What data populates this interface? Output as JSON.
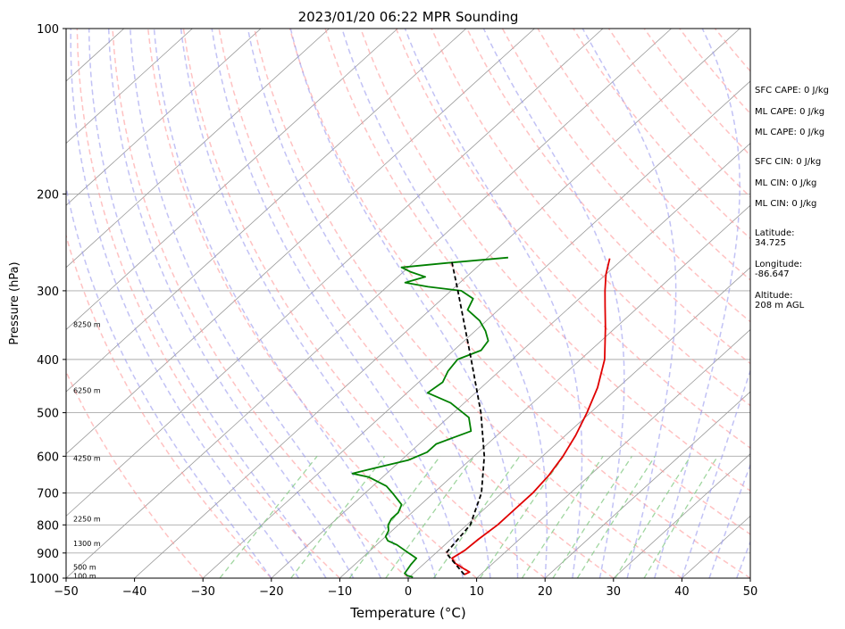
{
  "chart_data": {
    "type": "line",
    "title": "2023/01/20 06:22 MPR Sounding",
    "xlabel": "Temperature (°C)",
    "ylabel": "Pressure (hPa)",
    "xlim": [
      -50,
      50
    ],
    "ylim": [
      1000,
      100
    ],
    "y_scale": "log",
    "skew": true,
    "grid": true,
    "x_ticks": [
      "−50",
      "−40",
      "−30",
      "−20",
      "−10",
      "0",
      "10",
      "20",
      "30",
      "40",
      "50"
    ],
    "x_tick_values": [
      -50,
      -40,
      -30,
      -20,
      -10,
      0,
      10,
      20,
      30,
      40,
      50
    ],
    "y_ticks": [
      "100",
      "200",
      "300",
      "400",
      "500",
      "600",
      "700",
      "800",
      "900",
      "1000"
    ],
    "y_tick_values": [
      100,
      200,
      300,
      400,
      500,
      600,
      700,
      800,
      900,
      1000
    ],
    "series": [
      {
        "color": "#e00000",
        "points": [
          [
            985,
            7.6
          ],
          [
            975,
            8.0
          ],
          [
            960,
            6.5
          ],
          [
            940,
            4.5
          ],
          [
            920,
            3.2
          ],
          [
            890,
            3.8
          ],
          [
            850,
            4.0
          ],
          [
            800,
            4.5
          ],
          [
            750,
            4.5
          ],
          [
            700,
            4.5
          ],
          [
            650,
            4.0
          ],
          [
            600,
            3.0
          ],
          [
            550,
            1.5
          ],
          [
            500,
            -0.5
          ],
          [
            450,
            -3.0
          ],
          [
            400,
            -6.5
          ],
          [
            350,
            -11.5
          ],
          [
            320,
            -15.0
          ],
          [
            300,
            -17.5
          ],
          [
            280,
            -20.0
          ],
          [
            262,
            -22.0
          ]
        ]
      },
      {
        "color": "#008000",
        "points": [
          [
            995,
            0.5
          ],
          [
            990,
            -0.5
          ],
          [
            980,
            -1.3
          ],
          [
            965,
            -1.5
          ],
          [
            945,
            -1.8
          ],
          [
            920,
            -2.0
          ],
          [
            895,
            -4.5
          ],
          [
            870,
            -7.0
          ],
          [
            855,
            -9.0
          ],
          [
            840,
            -10.0
          ],
          [
            820,
            -10.5
          ],
          [
            800,
            -11.5
          ],
          [
            780,
            -12.0
          ],
          [
            760,
            -12.0
          ],
          [
            735,
            -12.8
          ],
          [
            700,
            -16.0
          ],
          [
            680,
            -18.0
          ],
          [
            655,
            -22.0
          ],
          [
            645,
            -25.0
          ],
          [
            630,
            -22.5
          ],
          [
            610,
            -19.0
          ],
          [
            590,
            -17.5
          ],
          [
            570,
            -17.5
          ],
          [
            540,
            -14.5
          ],
          [
            510,
            -17.0
          ],
          [
            480,
            -22.0
          ],
          [
            460,
            -27.0
          ],
          [
            440,
            -26.5
          ],
          [
            420,
            -27.5
          ],
          [
            400,
            -28.0
          ],
          [
            385,
            -26.0
          ],
          [
            370,
            -26.5
          ],
          [
            355,
            -28.5
          ],
          [
            340,
            -31.0
          ],
          [
            325,
            -34.5
          ],
          [
            310,
            -35.5
          ],
          [
            300,
            -38.5
          ],
          [
            295,
            -44.0
          ],
          [
            290,
            -48.0
          ],
          [
            283,
            -46.0
          ],
          [
            277,
            -49.0
          ],
          [
            272,
            -51.0
          ],
          [
            267,
            -45.0
          ],
          [
            261,
            -37.0
          ]
        ]
      },
      {
        "color": "#000000",
        "points": [
          [
            985,
            7.6
          ],
          [
            900,
            1.5
          ],
          [
            800,
            0.5
          ],
          [
            700,
            -3.0
          ],
          [
            600,
            -8.5
          ],
          [
            500,
            -16.0
          ],
          [
            400,
            -26.0
          ],
          [
            300,
            -39.0
          ],
          [
            263,
            -45.0
          ]
        ]
      }
    ],
    "height_labels": [
      "100 m",
      "500 m",
      "1300 m",
      "2250 m",
      "4250 m",
      "6250 m",
      "8250 m"
    ],
    "height_label_pressures": [
      990,
      955,
      865,
      780,
      605,
      455,
      345
    ]
  },
  "info_panel": {
    "lines": [
      "SFC CAPE: 0 J/kg",
      "ML CAPE: 0 J/kg",
      "ML CAPE: 0 J/kg",
      "SFC CIN: 0 J/kg",
      "ML CIN: 0 J/kg",
      "ML CIN: 0 J/kg"
    ],
    "latitude_label": "Latitude:",
    "latitude_value": "34.725",
    "longitude_label": "Longitude:",
    "longitude_value": "-86.647",
    "altitude_label": "Altitude:",
    "altitude_value": "208 m AGL"
  },
  "colors": {
    "dry_adiabat": "#ff9999",
    "moist_adiabat": "#9999ee",
    "mixing_ratio": "#88cc88",
    "isotherm": "#999999",
    "isobar": "#aaaaaa",
    "temperature": "#e00000",
    "dewpoint": "#008000",
    "parcel": "#000000"
  }
}
